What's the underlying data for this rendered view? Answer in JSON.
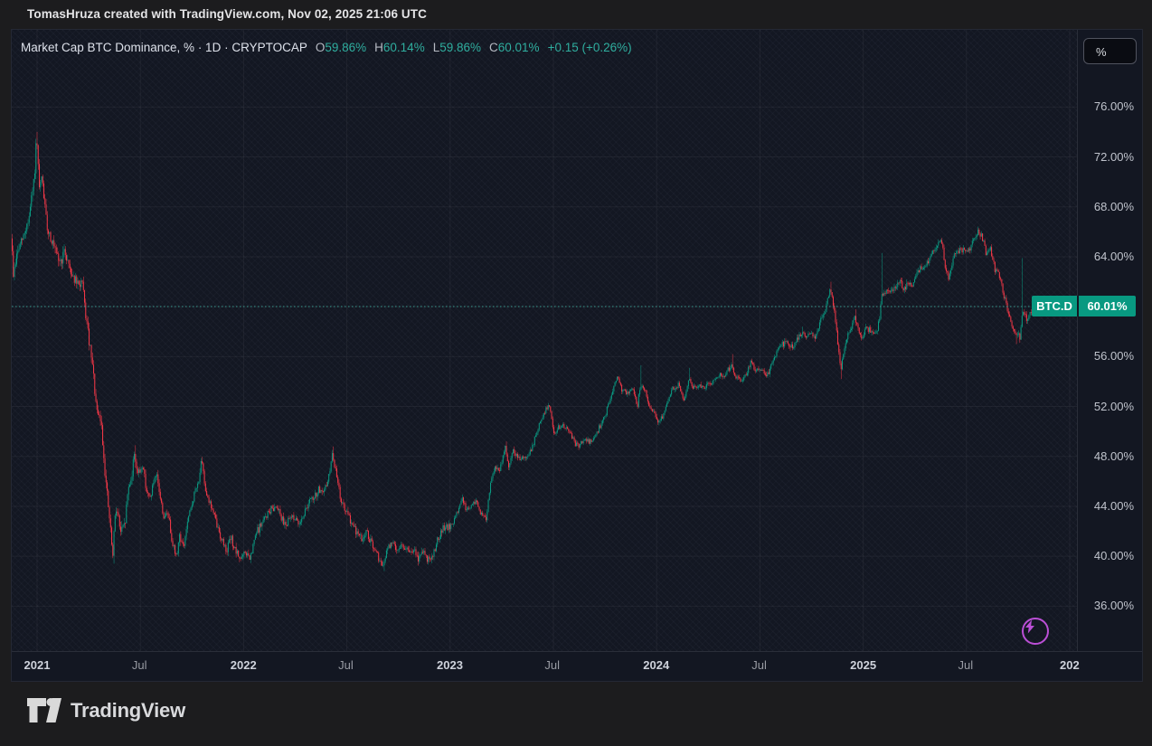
{
  "attribution": {
    "text": "TomasHruza created with TradingView.com, Nov 02, 2025 21:06 UTC"
  },
  "legend": {
    "title": "Market Cap BTC Dominance, % · 1D · CRYPTOCAP",
    "o_label": "O",
    "o_value": "59.86%",
    "h_label": "H",
    "h_value": "60.14%",
    "l_label": "L",
    "l_value": "59.86%",
    "c_label": "C",
    "c_value": "60.01%",
    "change": "+0.15 (+0.26%)"
  },
  "price_axis": {
    "unit_button": "%",
    "ticks": [
      {
        "label": "76.00%",
        "value": 76
      },
      {
        "label": "72.00%",
        "value": 72
      },
      {
        "label": "68.00%",
        "value": 68
      },
      {
        "label": "64.00%",
        "value": 64
      },
      {
        "label": "56.00%",
        "value": 56
      },
      {
        "label": "52.00%",
        "value": 52
      },
      {
        "label": "48.00%",
        "value": 48
      },
      {
        "label": "44.00%",
        "value": 44
      },
      {
        "label": "40.00%",
        "value": 40
      },
      {
        "label": "36.00%",
        "value": 36
      }
    ]
  },
  "price_badge": {
    "symbol": "BTC.D",
    "value": "60.01%"
  },
  "time_axis": {
    "ticks": [
      {
        "label": "2021",
        "date": "2021-01-01",
        "major": true
      },
      {
        "label": "Jul",
        "date": "2021-07-01",
        "major": false
      },
      {
        "label": "2022",
        "date": "2022-01-01",
        "major": true
      },
      {
        "label": "Jul",
        "date": "2022-07-01",
        "major": false
      },
      {
        "label": "2023",
        "date": "2023-01-01",
        "major": true
      },
      {
        "label": "Jul",
        "date": "2023-07-01",
        "major": false
      },
      {
        "label": "2024",
        "date": "2024-01-01",
        "major": true
      },
      {
        "label": "Jul",
        "date": "2024-07-01",
        "major": false
      },
      {
        "label": "2025",
        "date": "2025-01-01",
        "major": true
      },
      {
        "label": "Jul",
        "date": "2025-07-01",
        "major": false
      },
      {
        "label": "202",
        "date": "2026-01-01",
        "major": true
      }
    ]
  },
  "footer": {
    "brand": "TradingView"
  },
  "chart_data": {
    "type": "candlestick",
    "title": "Market Cap BTC Dominance, %",
    "symbol": "CRYPTOCAP:BTC.D",
    "timeframe": "1D",
    "unit": "%",
    "ylim": [
      33,
      79
    ],
    "grid": true,
    "colors": {
      "up": "#089981",
      "down": "#f23645",
      "current_price_line": "#3aa99b",
      "badge": "#089981",
      "legend_values": "#2fae9f",
      "boost_icon": "#bb4fd6"
    },
    "current": {
      "open": 59.86,
      "high": 60.14,
      "low": 59.86,
      "close": 60.01,
      "change": 0.15,
      "change_pct": 0.26
    },
    "control_points": [
      [
        "2020-11-16",
        67.3
      ],
      [
        "2020-11-22",
        62.6
      ],
      [
        "2020-11-29",
        64.3
      ],
      [
        "2020-12-10",
        65.6
      ],
      [
        "2020-12-20",
        67.2
      ],
      [
        "2020-12-29",
        70.2
      ],
      [
        "2021-01-02",
        73.5
      ],
      [
        "2021-01-07",
        69.4
      ],
      [
        "2021-01-12",
        70.3
      ],
      [
        "2021-01-20",
        66.5
      ],
      [
        "2021-01-30",
        65.2
      ],
      [
        "2021-02-06",
        64.0
      ],
      [
        "2021-02-14",
        63.6
      ],
      [
        "2021-02-21",
        64.4
      ],
      [
        "2021-03-06",
        62.6
      ],
      [
        "2021-03-17",
        61.6
      ],
      [
        "2021-03-23",
        62.1
      ],
      [
        "2021-03-28",
        60.1
      ],
      [
        "2021-04-04",
        57.5
      ],
      [
        "2021-04-12",
        54.8
      ],
      [
        "2021-04-19",
        51.3
      ],
      [
        "2021-04-26",
        50.9
      ],
      [
        "2021-05-04",
        46.3
      ],
      [
        "2021-05-11",
        43.0
      ],
      [
        "2021-05-17",
        39.9
      ],
      [
        "2021-05-22",
        44.2
      ],
      [
        "2021-05-27",
        43.0
      ],
      [
        "2021-05-31",
        41.9
      ],
      [
        "2021-06-07",
        42.4
      ],
      [
        "2021-06-13",
        45.4
      ],
      [
        "2021-06-20",
        46.6
      ],
      [
        "2021-06-24",
        48.3
      ],
      [
        "2021-07-01",
        46.4
      ],
      [
        "2021-07-09",
        47.4
      ],
      [
        "2021-07-15",
        45.4
      ],
      [
        "2021-07-21",
        44.5
      ],
      [
        "2021-07-28",
        45.9
      ],
      [
        "2021-08-03",
        46.3
      ],
      [
        "2021-08-10",
        44.4
      ],
      [
        "2021-08-16",
        42.9
      ],
      [
        "2021-08-22",
        43.6
      ],
      [
        "2021-08-29",
        41.5
      ],
      [
        "2021-09-06",
        39.9
      ],
      [
        "2021-09-12",
        41.7
      ],
      [
        "2021-09-19",
        40.6
      ],
      [
        "2021-09-25",
        42.5
      ],
      [
        "2021-10-01",
        43.6
      ],
      [
        "2021-10-08",
        45.0
      ],
      [
        "2021-10-14",
        45.7
      ],
      [
        "2021-10-21",
        47.6
      ],
      [
        "2021-10-27",
        45.6
      ],
      [
        "2021-11-02",
        44.6
      ],
      [
        "2021-11-10",
        43.6
      ],
      [
        "2021-11-18",
        42.3
      ],
      [
        "2021-11-26",
        41.3
      ],
      [
        "2021-12-04",
        40.5
      ],
      [
        "2021-12-12",
        41.5
      ],
      [
        "2021-12-20",
        40.3
      ],
      [
        "2021-12-30",
        39.8
      ],
      [
        "2022-01-07",
        40.3
      ],
      [
        "2022-01-15",
        39.7
      ],
      [
        "2022-01-25",
        41.8
      ],
      [
        "2022-02-03",
        42.5
      ],
      [
        "2022-02-13",
        43.3
      ],
      [
        "2022-02-22",
        43.8
      ],
      [
        "2022-03-04",
        44.1
      ],
      [
        "2022-03-13",
        42.9
      ],
      [
        "2022-03-21",
        42.6
      ],
      [
        "2022-03-31",
        43.3
      ],
      [
        "2022-04-09",
        42.6
      ],
      [
        "2022-04-19",
        43.3
      ],
      [
        "2022-04-29",
        44.4
      ],
      [
        "2022-05-08",
        44.6
      ],
      [
        "2022-05-16",
        45.4
      ],
      [
        "2022-05-24",
        44.9
      ],
      [
        "2022-06-02",
        46.2
      ],
      [
        "2022-06-10",
        48.3
      ],
      [
        "2022-06-16",
        46.5
      ],
      [
        "2022-06-24",
        44.6
      ],
      [
        "2022-07-02",
        43.6
      ],
      [
        "2022-07-11",
        42.9
      ],
      [
        "2022-07-21",
        42.0
      ],
      [
        "2022-07-31",
        41.4
      ],
      [
        "2022-08-09",
        41.9
      ],
      [
        "2022-08-19",
        40.8
      ],
      [
        "2022-08-28",
        40.0
      ],
      [
        "2022-09-07",
        39.1
      ],
      [
        "2022-09-15",
        40.7
      ],
      [
        "2022-09-23",
        41.0
      ],
      [
        "2022-10-03",
        40.6
      ],
      [
        "2022-10-12",
        40.9
      ],
      [
        "2022-10-22",
        40.3
      ],
      [
        "2022-11-01",
        40.4
      ],
      [
        "2022-11-09",
        39.7
      ],
      [
        "2022-11-17",
        40.6
      ],
      [
        "2022-11-25",
        39.6
      ],
      [
        "2022-12-05",
        40.3
      ],
      [
        "2022-12-14",
        41.5
      ],
      [
        "2022-12-22",
        42.2
      ],
      [
        "2023-01-01",
        42.3
      ],
      [
        "2023-01-08",
        42.5
      ],
      [
        "2023-01-18",
        43.8
      ],
      [
        "2023-01-24",
        44.7
      ],
      [
        "2023-02-01",
        43.7
      ],
      [
        "2023-02-09",
        44.0
      ],
      [
        "2023-02-19",
        44.4
      ],
      [
        "2023-02-27",
        43.4
      ],
      [
        "2023-03-08",
        42.9
      ],
      [
        "2023-03-16",
        46.0
      ],
      [
        "2023-03-24",
        47.3
      ],
      [
        "2023-04-01",
        46.8
      ],
      [
        "2023-04-11",
        48.9
      ],
      [
        "2023-04-17",
        47.1
      ],
      [
        "2023-04-25",
        48.5
      ],
      [
        "2023-05-05",
        47.8
      ],
      [
        "2023-05-14",
        48.0
      ],
      [
        "2023-05-24",
        48.2
      ],
      [
        "2023-06-03",
        49.5
      ],
      [
        "2023-06-12",
        50.8
      ],
      [
        "2023-06-22",
        51.8
      ],
      [
        "2023-06-28",
        52.1
      ],
      [
        "2023-07-06",
        49.9
      ],
      [
        "2023-07-14",
        50.3
      ],
      [
        "2023-07-24",
        50.4
      ],
      [
        "2023-08-02",
        50.1
      ],
      [
        "2023-08-12",
        49.0
      ],
      [
        "2023-08-20",
        48.9
      ],
      [
        "2023-08-30",
        49.3
      ],
      [
        "2023-09-08",
        49.2
      ],
      [
        "2023-09-16",
        49.5
      ],
      [
        "2023-09-24",
        50.3
      ],
      [
        "2023-10-04",
        51.2
      ],
      [
        "2023-10-13",
        52.5
      ],
      [
        "2023-10-23",
        53.9
      ],
      [
        "2023-10-28",
        54.4
      ],
      [
        "2023-11-03",
        53.3
      ],
      [
        "2023-11-12",
        53.0
      ],
      [
        "2023-11-22",
        53.5
      ],
      [
        "2023-12-01",
        52.1
      ],
      [
        "2023-12-06",
        53.8
      ],
      [
        "2023-12-14",
        53.4
      ],
      [
        "2023-12-22",
        51.8
      ],
      [
        "2023-12-30",
        51.7
      ],
      [
        "2024-01-07",
        50.6
      ],
      [
        "2024-01-15",
        51.3
      ],
      [
        "2024-01-23",
        52.4
      ],
      [
        "2024-02-02",
        53.5
      ],
      [
        "2024-02-11",
        53.7
      ],
      [
        "2024-02-21",
        52.4
      ],
      [
        "2024-02-29",
        54.2
      ],
      [
        "2024-03-10",
        53.5
      ],
      [
        "2024-03-19",
        53.7
      ],
      [
        "2024-03-29",
        53.6
      ],
      [
        "2024-04-08",
        53.7
      ],
      [
        "2024-04-16",
        54.2
      ],
      [
        "2024-04-24",
        54.6
      ],
      [
        "2024-05-02",
        54.3
      ],
      [
        "2024-05-10",
        55.0
      ],
      [
        "2024-05-15",
        55.4
      ],
      [
        "2024-05-23",
        54.3
      ],
      [
        "2024-06-02",
        53.9
      ],
      [
        "2024-06-11",
        54.6
      ],
      [
        "2024-06-19",
        55.6
      ],
      [
        "2024-06-27",
        54.8
      ],
      [
        "2024-07-07",
        55.1
      ],
      [
        "2024-07-15",
        54.2
      ],
      [
        "2024-07-23",
        55.0
      ],
      [
        "2024-08-02",
        56.3
      ],
      [
        "2024-08-11",
        56.9
      ],
      [
        "2024-08-21",
        57.2
      ],
      [
        "2024-08-30",
        56.7
      ],
      [
        "2024-09-07",
        57.4
      ],
      [
        "2024-09-17",
        57.9
      ],
      [
        "2024-09-25",
        57.4
      ],
      [
        "2024-10-03",
        58.0
      ],
      [
        "2024-10-11",
        57.6
      ],
      [
        "2024-10-19",
        58.8
      ],
      [
        "2024-10-27",
        59.6
      ],
      [
        "2024-11-06",
        61.5
      ],
      [
        "2024-11-12",
        60.0
      ],
      [
        "2024-11-19",
        57.0
      ],
      [
        "2024-11-24",
        54.8
      ],
      [
        "2024-11-30",
        56.5
      ],
      [
        "2024-12-06",
        57.8
      ],
      [
        "2024-12-13",
        58.4
      ],
      [
        "2024-12-19",
        59.1
      ],
      [
        "2024-12-25",
        58.1
      ],
      [
        "2025-01-01",
        57.4
      ],
      [
        "2025-01-09",
        58.3
      ],
      [
        "2025-01-17",
        58.0
      ],
      [
        "2025-01-25",
        57.6
      ],
      [
        "2025-02-01",
        59.0
      ],
      [
        "2025-02-04",
        60.8
      ],
      [
        "2025-02-12",
        61.3
      ],
      [
        "2025-02-20",
        61.0
      ],
      [
        "2025-02-28",
        61.5
      ],
      [
        "2025-03-08",
        62.2
      ],
      [
        "2025-03-16",
        61.4
      ],
      [
        "2025-03-24",
        61.9
      ],
      [
        "2025-04-01",
        61.6
      ],
      [
        "2025-04-09",
        62.7
      ],
      [
        "2025-04-17",
        63.2
      ],
      [
        "2025-04-25",
        63.4
      ],
      [
        "2025-05-03",
        64.1
      ],
      [
        "2025-05-11",
        64.8
      ],
      [
        "2025-05-17",
        65.4
      ],
      [
        "2025-05-24",
        64.7
      ],
      [
        "2025-05-29",
        62.8
      ],
      [
        "2025-06-04",
        62.3
      ],
      [
        "2025-06-12",
        64.0
      ],
      [
        "2025-06-20",
        64.5
      ],
      [
        "2025-06-28",
        64.6
      ],
      [
        "2025-07-08",
        64.4
      ],
      [
        "2025-07-17",
        65.3
      ],
      [
        "2025-07-25",
        66.0
      ],
      [
        "2025-08-02",
        65.5
      ],
      [
        "2025-08-08",
        64.3
      ],
      [
        "2025-08-16",
        64.6
      ],
      [
        "2025-08-24",
        63.0
      ],
      [
        "2025-08-31",
        62.6
      ],
      [
        "2025-09-06",
        61.5
      ],
      [
        "2025-09-12",
        60.3
      ],
      [
        "2025-09-18",
        59.2
      ],
      [
        "2025-09-24",
        58.3
      ],
      [
        "2025-09-30",
        57.6
      ],
      [
        "2025-10-04",
        58.1
      ],
      [
        "2025-10-08",
        57.4
      ],
      [
        "2025-10-10",
        59.5
      ],
      [
        "2025-10-16",
        59.2
      ],
      [
        "2025-10-22",
        59.0
      ],
      [
        "2025-10-28",
        59.7
      ],
      [
        "2025-11-02",
        60.01
      ]
    ],
    "special_wicks": [
      {
        "date": "2021-01-02",
        "high": 74.0
      },
      {
        "date": "2021-05-17",
        "low": 39.4
      },
      {
        "date": "2021-06-24",
        "high": 48.9
      },
      {
        "date": "2022-06-10",
        "high": 48.8
      },
      {
        "date": "2022-09-07",
        "low": 38.8
      },
      {
        "date": "2023-04-11",
        "high": 49.2
      },
      {
        "date": "2023-12-06",
        "high": 55.3
      },
      {
        "date": "2024-02-29",
        "high": 55.1
      },
      {
        "date": "2024-05-15",
        "high": 56.2
      },
      {
        "date": "2024-09-17",
        "high": 58.4
      },
      {
        "date": "2024-11-06",
        "high": 62.0
      },
      {
        "date": "2024-11-24",
        "low": 54.2
      },
      {
        "date": "2024-12-19",
        "high": 59.8
      },
      {
        "date": "2025-02-04",
        "high": 64.3
      },
      {
        "date": "2025-07-25",
        "high": 66.3
      },
      {
        "date": "2025-09-30",
        "low": 57.0
      },
      {
        "date": "2025-10-10",
        "high": 63.9
      }
    ],
    "last_candle": {
      "date": "2025-11-02",
      "open": 59.86,
      "high": 60.14,
      "low": 59.86,
      "close": 60.01
    }
  }
}
